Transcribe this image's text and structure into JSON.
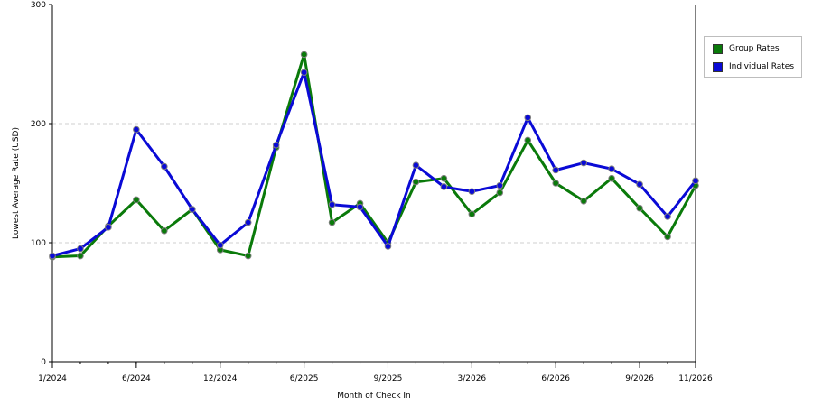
{
  "chart_data": {
    "type": "line",
    "xlabel": "Month of Check In",
    "ylabel": "Lowest Average Rate (USD)",
    "ylim": [
      0,
      300
    ],
    "yticks": [
      0,
      100,
      200,
      300
    ],
    "grid": "horizontal dashed",
    "legend_position": "right",
    "x_tick_labels": [
      "1/2024",
      "6/2024",
      "12/2024",
      "6/2025",
      "9/2025",
      "3/2026",
      "6/2026",
      "9/2026",
      "11/2026"
    ],
    "series": [
      {
        "name": "Group Rates",
        "color": "#0a7a0a",
        "values": [
          88,
          89,
          114,
          136,
          110,
          128,
          94,
          89,
          180,
          258,
          117,
          133,
          100,
          151,
          154,
          124,
          142,
          186,
          150,
          135,
          154,
          129,
          105,
          148
        ]
      },
      {
        "name": "Individual Rates",
        "color": "#0a0ad6",
        "values": [
          89,
          95,
          113,
          195,
          164,
          128,
          98,
          117,
          182,
          243,
          132,
          130,
          97,
          165,
          147,
          143,
          148,
          205,
          161,
          167,
          162,
          149,
          122,
          152
        ]
      }
    ]
  }
}
